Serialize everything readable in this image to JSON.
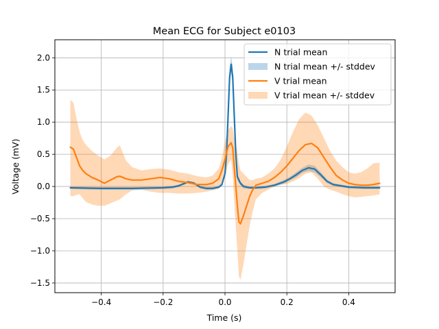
{
  "chart_data": {
    "type": "line",
    "title": "Mean ECG for Subject e0103",
    "xlabel": "Time (s)",
    "ylabel": "Voltage (mV)",
    "xlim": [
      -0.55,
      0.55
    ],
    "ylim": [
      -1.65,
      2.28
    ],
    "xticks": [
      -0.4,
      -0.2,
      0.0,
      0.2,
      0.4
    ],
    "xtick_labels": [
      "−0.4",
      "−0.2",
      "0.0",
      "0.2",
      "0.4"
    ],
    "yticks": [
      -1.5,
      -1.0,
      -0.5,
      0.0,
      0.5,
      1.0,
      1.5,
      2.0
    ],
    "ytick_labels": [
      "−1.5",
      "−1.0",
      "−0.5",
      "0.0",
      "0.5",
      "1.0",
      "1.5",
      "2.0"
    ],
    "grid": true,
    "legend_position": "top-right",
    "legend": [
      {
        "label": "N trial mean",
        "kind": "line",
        "color": "#1f77b4"
      },
      {
        "label": "N trial mean +/- stddev",
        "kind": "band",
        "color": "#1f77b4"
      },
      {
        "label": "V trial mean",
        "kind": "line",
        "color": "#ff7f0e"
      },
      {
        "label": "V trial mean +/- stddev",
        "kind": "band",
        "color": "#ff7f0e"
      }
    ],
    "series": [
      {
        "name": "N trial mean",
        "color": "#1f77b4",
        "x": [
          -0.5,
          -0.4,
          -0.3,
          -0.2,
          -0.17,
          -0.15,
          -0.13,
          -0.12,
          -0.1,
          -0.08,
          -0.06,
          -0.04,
          -0.02,
          -0.01,
          0.0,
          0.005,
          0.01,
          0.015,
          0.02,
          0.025,
          0.03,
          0.035,
          0.04,
          0.05,
          0.06,
          0.08,
          0.1,
          0.13,
          0.16,
          0.19,
          0.21,
          0.23,
          0.25,
          0.27,
          0.29,
          0.31,
          0.33,
          0.35,
          0.4,
          0.45,
          0.5
        ],
        "y": [
          -0.02,
          -0.03,
          -0.03,
          -0.02,
          -0.01,
          0.01,
          0.05,
          0.07,
          0.05,
          -0.01,
          -0.03,
          -0.03,
          -0.01,
          0.03,
          0.2,
          0.5,
          1.1,
          1.7,
          1.9,
          1.7,
          1.1,
          0.5,
          0.15,
          0.05,
          0.0,
          -0.02,
          -0.02,
          -0.01,
          0.02,
          0.07,
          0.12,
          0.18,
          0.25,
          0.29,
          0.27,
          0.18,
          0.08,
          0.03,
          -0.01,
          -0.02,
          -0.02
        ],
        "band": {
          "label": "N trial mean +/- stddev",
          "lower": [
            -0.04,
            -0.05,
            -0.05,
            -0.04,
            -0.03,
            -0.01,
            0.03,
            0.05,
            0.03,
            -0.03,
            -0.05,
            -0.05,
            -0.03,
            0.01,
            0.15,
            0.4,
            0.95,
            1.55,
            1.78,
            1.55,
            0.95,
            0.4,
            0.1,
            0.02,
            -0.03,
            -0.04,
            -0.04,
            -0.03,
            0.0,
            0.04,
            0.09,
            0.14,
            0.21,
            0.24,
            0.22,
            0.14,
            0.05,
            0.01,
            -0.03,
            -0.04,
            -0.04
          ],
          "upper": [
            0.0,
            -0.01,
            -0.01,
            0.0,
            0.01,
            0.03,
            0.07,
            0.09,
            0.07,
            0.01,
            -0.01,
            -0.01,
            0.01,
            0.05,
            0.25,
            0.6,
            1.25,
            1.85,
            2.02,
            1.85,
            1.25,
            0.6,
            0.2,
            0.08,
            0.03,
            0.0,
            0.0,
            0.01,
            0.04,
            0.1,
            0.15,
            0.22,
            0.29,
            0.34,
            0.32,
            0.22,
            0.11,
            0.05,
            0.01,
            0.0,
            0.0
          ]
        }
      },
      {
        "name": "V trial mean",
        "color": "#ff7f0e",
        "x": [
          -0.5,
          -0.49,
          -0.48,
          -0.47,
          -0.46,
          -0.45,
          -0.43,
          -0.41,
          -0.39,
          -0.37,
          -0.35,
          -0.34,
          -0.32,
          -0.3,
          -0.27,
          -0.24,
          -0.21,
          -0.18,
          -0.15,
          -0.12,
          -0.09,
          -0.06,
          -0.04,
          -0.02,
          -0.01,
          0.0,
          0.01,
          0.02,
          0.025,
          0.03,
          0.04,
          0.045,
          0.05,
          0.06,
          0.07,
          0.08,
          0.09,
          0.1,
          0.12,
          0.14,
          0.16,
          0.18,
          0.2,
          0.22,
          0.24,
          0.26,
          0.28,
          0.3,
          0.32,
          0.34,
          0.36,
          0.38,
          0.4,
          0.42,
          0.44,
          0.46,
          0.48,
          0.5
        ],
        "y": [
          0.61,
          0.58,
          0.45,
          0.32,
          0.25,
          0.2,
          0.14,
          0.1,
          0.05,
          0.1,
          0.15,
          0.16,
          0.12,
          0.1,
          0.1,
          0.12,
          0.14,
          0.12,
          0.08,
          0.06,
          0.03,
          0.03,
          0.05,
          0.12,
          0.25,
          0.42,
          0.62,
          0.68,
          0.6,
          0.3,
          -0.3,
          -0.55,
          -0.58,
          -0.45,
          -0.3,
          -0.15,
          -0.05,
          0.02,
          0.05,
          0.08,
          0.14,
          0.22,
          0.32,
          0.44,
          0.56,
          0.65,
          0.67,
          0.6,
          0.45,
          0.3,
          0.17,
          0.1,
          0.05,
          0.03,
          0.02,
          0.02,
          0.03,
          0.05
        ],
        "band": {
          "label": "V trial mean +/- stddev",
          "lower": [
            -0.15,
            -0.15,
            -0.13,
            -0.12,
            -0.18,
            -0.24,
            -0.28,
            -0.3,
            -0.3,
            -0.26,
            -0.22,
            -0.2,
            -0.12,
            -0.06,
            -0.05,
            -0.08,
            -0.1,
            -0.1,
            -0.11,
            -0.11,
            -0.1,
            -0.08,
            -0.06,
            -0.03,
            0.02,
            0.14,
            0.35,
            0.42,
            0.18,
            -0.25,
            -1.0,
            -1.4,
            -1.45,
            -1.2,
            -0.9,
            -0.6,
            -0.38,
            -0.2,
            -0.1,
            -0.05,
            0.0,
            0.03,
            0.04,
            0.08,
            0.13,
            0.2,
            0.22,
            0.12,
            0.0,
            -0.05,
            -0.08,
            -0.12,
            -0.15,
            -0.17,
            -0.16,
            -0.15,
            -0.14,
            -0.12
          ],
          "upper": [
            1.35,
            1.3,
            1.05,
            0.85,
            0.72,
            0.65,
            0.55,
            0.48,
            0.42,
            0.48,
            0.6,
            0.64,
            0.4,
            0.3,
            0.25,
            0.27,
            0.28,
            0.26,
            0.22,
            0.2,
            0.16,
            0.14,
            0.17,
            0.28,
            0.45,
            0.7,
            0.88,
            0.94,
            0.9,
            0.75,
            0.55,
            0.35,
            0.25,
            0.2,
            0.15,
            0.1,
            0.1,
            0.12,
            0.14,
            0.2,
            0.28,
            0.42,
            0.62,
            0.85,
            1.05,
            1.15,
            1.1,
            0.95,
            0.75,
            0.55,
            0.4,
            0.3,
            0.22,
            0.2,
            0.22,
            0.28,
            0.36,
            0.37
          ]
        }
      }
    ]
  }
}
